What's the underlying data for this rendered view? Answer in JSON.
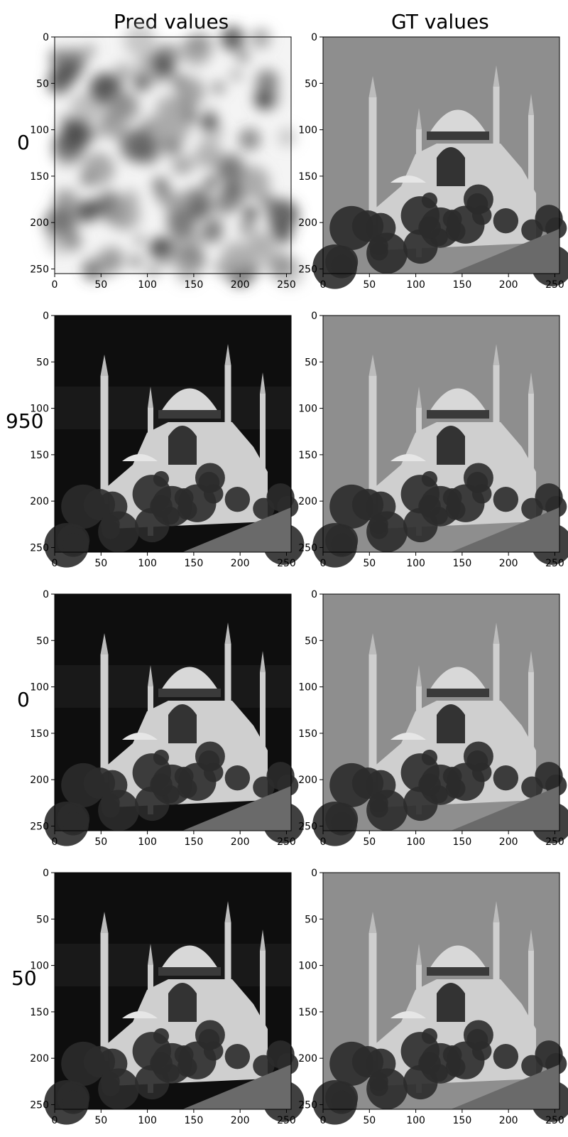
{
  "titles": {
    "left": "Pred values",
    "right": "GT values"
  },
  "rows": [
    {
      "label": "0",
      "pred_quality": "noise"
    },
    {
      "label": "950",
      "pred_quality": "recon"
    },
    {
      "label": "0",
      "pred_quality": "recon"
    },
    {
      "label": "50",
      "pred_quality": "recon"
    }
  ],
  "axis": {
    "x_ticks": [
      "0",
      "50",
      "100",
      "150",
      "200",
      "250"
    ],
    "y_ticks": [
      "0",
      "50",
      "100",
      "150",
      "200",
      "250"
    ],
    "range": [
      0,
      255
    ]
  },
  "colors": {
    "sky_gt": "#8e8e8e",
    "sky_pred": "#0e0e0e",
    "building": "#cfcfcf",
    "trees": "#2b2b2b",
    "noise_light": "#f4f4f4",
    "noise_dark": "#555555"
  }
}
